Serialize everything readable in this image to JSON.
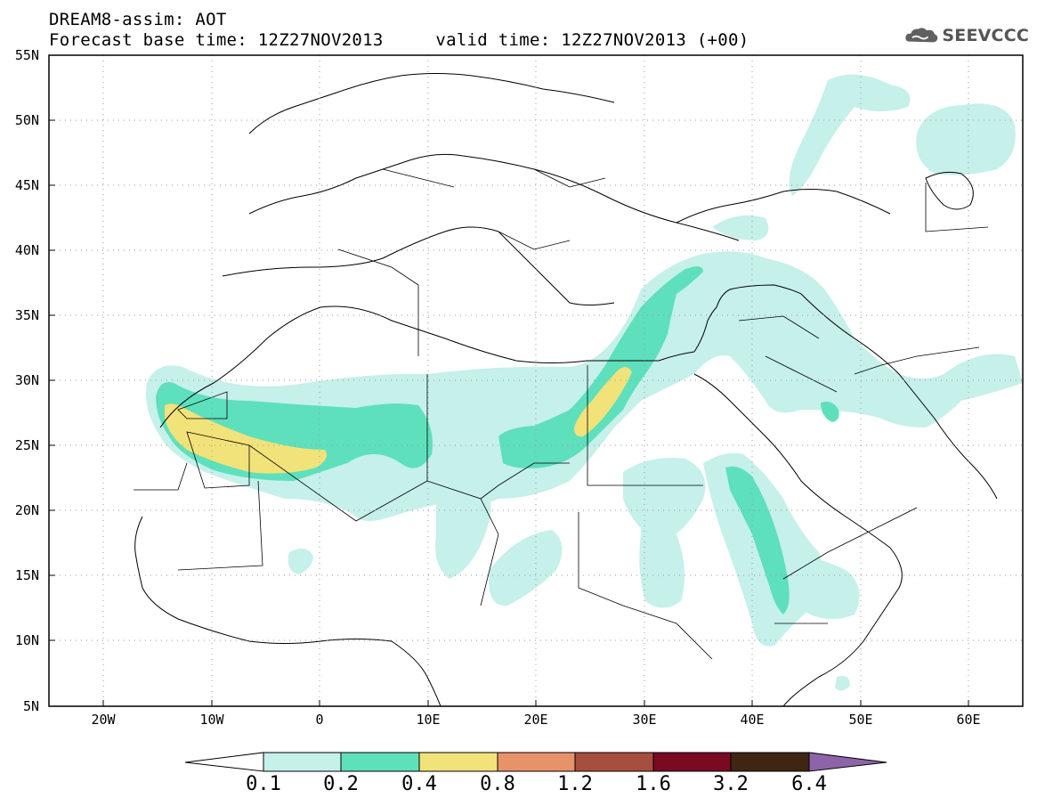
{
  "header": {
    "title_line1": "DREAM8-assim: AOT",
    "title_line2": "Forecast base time: 12Z27NOV2013     valid time: 12Z27NOV2013 (+00)",
    "logo_text": "SEEVCCC",
    "logo_icon": "cloud-icon"
  },
  "map": {
    "lat_labels": [
      "55N",
      "50N",
      "45N",
      "40N",
      "35N",
      "30N",
      "25N",
      "20N",
      "15N",
      "10N",
      "5N"
    ],
    "lon_labels": [
      "20W",
      "10W",
      "0",
      "10E",
      "20E",
      "30E",
      "40E",
      "50E",
      "60E"
    ],
    "lat_range": [
      5,
      55
    ],
    "lon_range": [
      -25,
      65
    ],
    "grid": "dotted"
  },
  "colorbar": {
    "labels": [
      "0.1",
      "0.2",
      "0.4",
      "0.8",
      "1.2",
      "1.6",
      "3.2",
      "6.4"
    ],
    "colors": [
      "#ffffff",
      "#c6f0ea",
      "#5ee0bc",
      "#f2e27a",
      "#e8926a",
      "#a84e3e",
      "#7a0a22",
      "#3f2612",
      "#8e64a8"
    ]
  }
}
